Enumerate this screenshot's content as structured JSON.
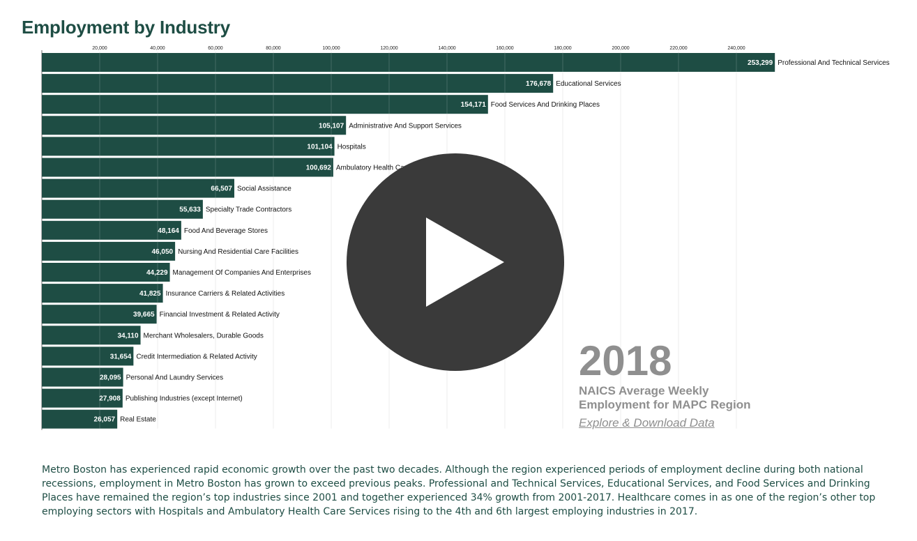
{
  "page": {
    "title": "Employment by Industry",
    "year": "2018",
    "subtitle_line1": "NAICS Average Weekly",
    "subtitle_line2": "Employment for MAPC Region",
    "explore_link": "Explore & Download Data",
    "description": "Metro Boston has experienced rapid economic growth over the past two decades. Although the region experienced periods of employment decline during both national recessions, employment in Metro Boston has grown to exceed previous peaks. Professional and Technical Services, Educational Services, and Food Services and Drinking Places have remained the region’s top industries since 2001 and together experienced 34% growth from 2001-2017. Healthcare comes in as one of the region’s other top employing sectors with Hospitals and Ambulatory Health Care Services rising to the 4th and 6th largest employing industries in 2017.",
    "play_icon": "play-icon"
  },
  "colors": {
    "bar": "#1e4d44",
    "title": "#1e4d44",
    "year_text": "#8f8f8f",
    "play_button": "#3a3a3a"
  },
  "chart_data": {
    "type": "bar",
    "orientation": "horizontal",
    "title": "Employment by Industry",
    "xlim": [
      0,
      260000
    ],
    "xticks": [
      20000,
      40000,
      60000,
      80000,
      100000,
      120000,
      140000,
      160000,
      180000,
      200000,
      220000,
      240000
    ],
    "xtick_labels": [
      "20,000",
      "40,000",
      "60,000",
      "80,000",
      "100,000",
      "120,000",
      "140,000",
      "160,000",
      "180,000",
      "200,000",
      "220,000",
      "240,000"
    ],
    "grid": true,
    "categories": [
      "Professional And Technical Services",
      "Educational Services",
      "Food Services And Drinking Places",
      "Administrative And Support Services",
      "Hospitals",
      "Ambulatory Health Care Services",
      "Social Assistance",
      "Specialty Trade Contractors",
      "Food And Beverage Stores",
      "Nursing And Residential Care Facilities",
      "Management Of Companies And Enterprises",
      "Insurance Carriers & Related Activities",
      "Financial Investment & Related Activity",
      "Merchant Wholesalers, Durable Goods",
      "Credit Intermediation & Related Activity",
      "Personal And Laundry Services",
      "Publishing Industries (except Internet)",
      "Real Estate"
    ],
    "values": [
      253299,
      176678,
      154171,
      105107,
      101104,
      100692,
      66507,
      55633,
      48164,
      46050,
      44229,
      41825,
      39665,
      34110,
      31654,
      28095,
      27908,
      26057
    ],
    "value_labels": [
      "253,299",
      "176,678",
      "154,171",
      "105,107",
      "101,104",
      "100,692",
      "66,507",
      "55,633",
      "48,164",
      "46,050",
      "44,229",
      "41,825",
      "39,665",
      "34,110",
      "31,654",
      "28,095",
      "27,908",
      "26,057"
    ]
  }
}
